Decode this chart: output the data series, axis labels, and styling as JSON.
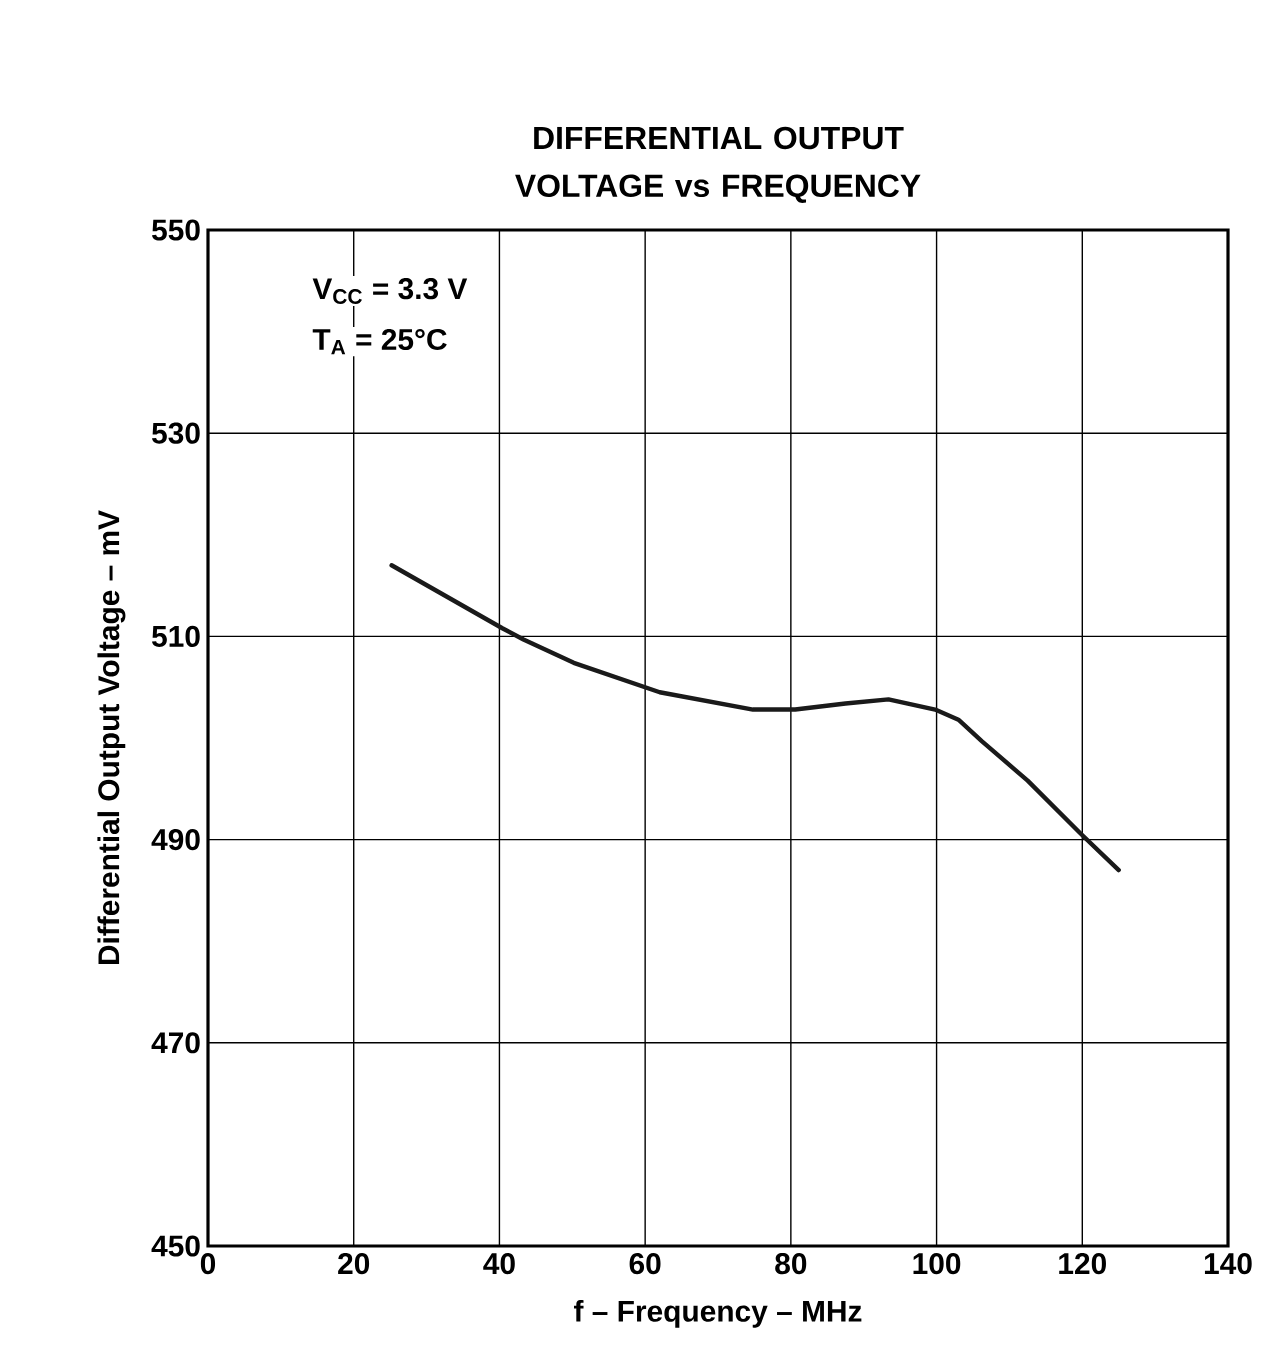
{
  "chart_data": {
    "type": "line",
    "title": "DIFFERENTIAL OUTPUT VOLTAGE vs FREQUENCY",
    "xlabel": "f – Frequency – MHz",
    "ylabel": "Differential Output Voltage – mV",
    "annotations": [
      "V$_{CC}$ = 3.3 V",
      "T$_{A}$ = 25°C"
    ],
    "x": [
      25.2,
      40.4,
      43.3,
      50.2,
      62.0,
      74.8,
      80.6,
      87.5,
      93.4,
      99.8,
      103.0,
      106.2,
      112.5,
      119.9,
      125.0
    ],
    "series": [
      {
        "color": "#1a1a1a",
        "values": [
          517.0,
          510.8,
          509.7,
          507.4,
          504.5,
          502.8,
          502.8,
          503.4,
          503.8,
          502.8,
          501.8,
          499.7,
          495.8,
          490.5,
          487.0
        ]
      }
    ],
    "xlim": [
      0,
      140
    ],
    "xticks": [
      0,
      20,
      40,
      60,
      80,
      100,
      120,
      140
    ],
    "ylim": [
      450,
      550
    ],
    "yticks": [
      450,
      470,
      490,
      510,
      530,
      550
    ],
    "grid": true,
    "marker": "none",
    "line_style": "solid"
  }
}
